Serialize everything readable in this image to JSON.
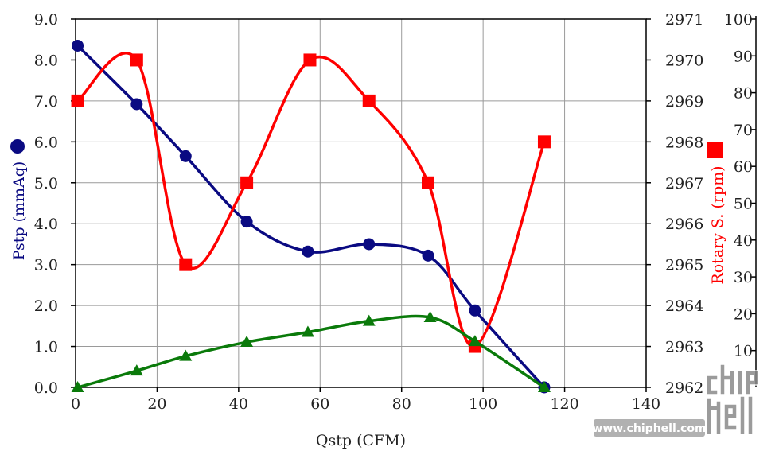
{
  "chart_data": {
    "type": "line",
    "xlabel": "Qstp (CFM)",
    "xlim": [
      0,
      140
    ],
    "x_ticks": [
      "0",
      "20",
      "40",
      "60",
      "80",
      "100",
      "120",
      "140"
    ],
    "left_axis": {
      "label": "Pstp (mmAq)",
      "ylim": [
        0,
        9
      ],
      "ticks": [
        "0.0",
        "1.0",
        "2.0",
        "3.0",
        "4.0",
        "5.0",
        "6.0",
        "7.0",
        "8.0",
        "9.0"
      ]
    },
    "right_axis_1": {
      "label": "Rotary S. (rpm)",
      "ylim": [
        2962,
        2971
      ],
      "ticks": [
        "2962",
        "2963",
        "2964",
        "2965",
        "2966",
        "2967",
        "2968",
        "2969",
        "2970",
        "2971"
      ]
    },
    "right_axis_2": {
      "ylim": [
        0,
        100
      ],
      "ticks": [
        "10",
        "20",
        "30",
        "40",
        "50",
        "60",
        "70",
        "80",
        "90",
        "100"
      ]
    },
    "grid": true,
    "series": [
      {
        "name": "Pstp (mmAq)",
        "axis": "left",
        "color": "#0a0a82",
        "marker": "circle",
        "x": [
          0.5,
          15,
          27,
          42,
          57,
          72,
          86.5,
          98,
          115
        ],
        "y": [
          8.35,
          6.92,
          5.65,
          4.05,
          3.32,
          3.5,
          3.22,
          1.88,
          0
        ]
      },
      {
        "name": "Rotary S. (rpm)",
        "axis": "right1",
        "color": "#ff0000",
        "marker": "square",
        "x": [
          0.5,
          15,
          27,
          42,
          57.5,
          72,
          86.5,
          98,
          115
        ],
        "y": [
          2969,
          2970,
          2965,
          2967,
          2970,
          2969,
          2967,
          2963,
          2968
        ]
      },
      {
        "axis": "right2",
        "color": "#0a7a0a",
        "marker": "triangle",
        "x": [
          0.5,
          15,
          27,
          42,
          57,
          72,
          87,
          98,
          115
        ],
        "y": [
          0,
          4.5,
          8.5,
          12.3,
          15,
          18,
          19,
          12.5,
          0
        ]
      }
    ]
  },
  "watermark": {
    "url": "www.chiphell.com",
    "logo": "chip hell"
  }
}
